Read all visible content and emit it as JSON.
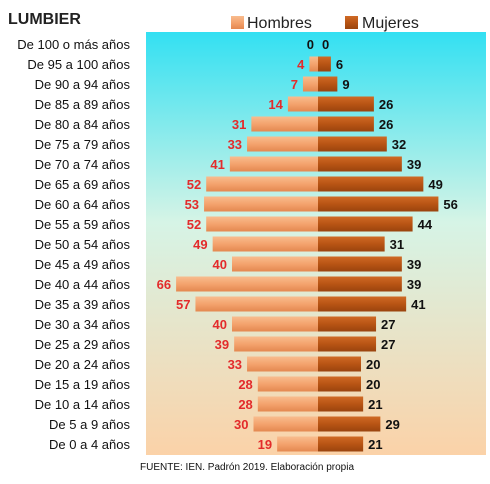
{
  "chart_data": {
    "type": "bar",
    "title": "LUMBIER",
    "categories": [
      "De 100 o más años",
      "De 95 a 100 años",
      "De 90 a 94 años",
      "De 85 a 89 años",
      "De 80 a 84 años",
      "De 75 a 79 años",
      "De 70 a 74 años",
      "De 65 a 69 años",
      "De 60 a 64 años",
      "De 55 a 59 años",
      "De 50 a 54 años",
      "De 45 a 49 años",
      "De 40 a 44 años",
      "De 35 a 39 años",
      "De 30 a 34 años",
      "De 25 a 29 años",
      "De 20 a 24 años",
      "De 15 a 19 años",
      "De 10 a 14 años",
      "De 5 a 9 años",
      "De 0 a 4 años"
    ],
    "series": [
      {
        "name": "Hombres",
        "values": [
          0,
          4,
          7,
          14,
          31,
          33,
          41,
          52,
          53,
          52,
          49,
          40,
          66,
          57,
          40,
          39,
          33,
          28,
          28,
          30,
          19
        ]
      },
      {
        "name": "Mujeres",
        "values": [
          0,
          6,
          9,
          26,
          26,
          32,
          39,
          49,
          56,
          44,
          31,
          39,
          39,
          41,
          27,
          27,
          20,
          20,
          21,
          29,
          21
        ]
      }
    ],
    "legend_position": "top",
    "source": "FUENTE: IEN. Padrón 2019. Elaboración propia",
    "colors": {
      "hombres_bar": "#f4a36e",
      "mujeres_bar": "#b85414",
      "hombres_label": "#e32b2b",
      "mujeres_label": "#111111",
      "background_top": "#33e0f2",
      "background_bottom": "#fbd2a8"
    }
  }
}
